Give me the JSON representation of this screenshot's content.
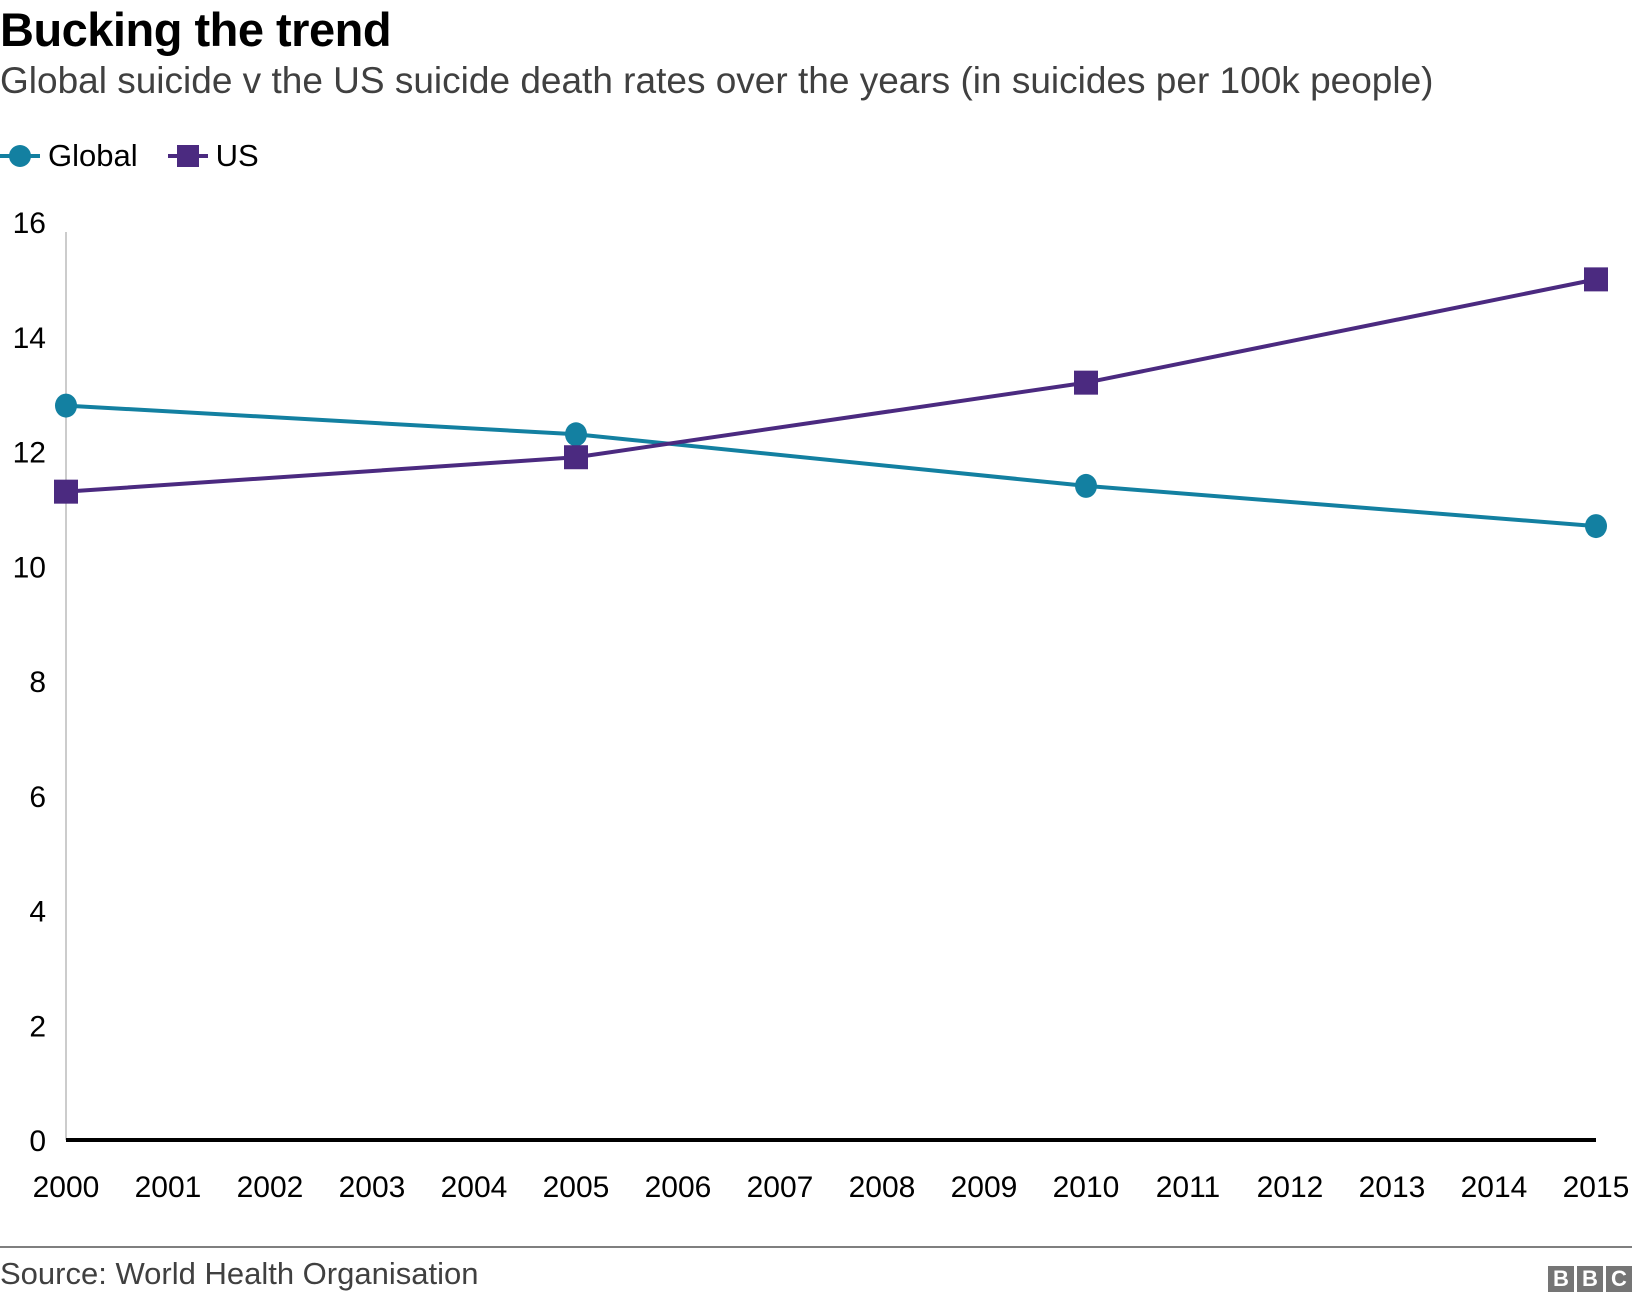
{
  "header": {
    "title": "Bucking the trend",
    "subtitle": "Global suicide v the US suicide death rates over the years (in suicides per 100k people)"
  },
  "legend": [
    {
      "name": "Global",
      "marker": "circle",
      "color": "#1380A1"
    },
    {
      "name": "US",
      "marker": "square",
      "color": "#4B2A80"
    }
  ],
  "footer": {
    "source": "Source: World Health Organisation",
    "logo_letters": [
      "B",
      "B",
      "C"
    ]
  },
  "chart_data": {
    "type": "line",
    "title": "Bucking the trend",
    "subtitle": "Global suicide v the US suicide death rates over the years (in suicides per 100k people)",
    "xlabel": "",
    "ylabel": "",
    "x_ticks": [
      "2000",
      "2001",
      "2002",
      "2003",
      "2004",
      "2005",
      "2006",
      "2007",
      "2008",
      "2009",
      "2010",
      "2011",
      "2012",
      "2013",
      "2014",
      "2015"
    ],
    "xlim": [
      2000,
      2015
    ],
    "y_ticks": [
      0,
      2,
      4,
      6,
      8,
      10,
      12,
      14,
      16
    ],
    "ylim": [
      0,
      16
    ],
    "grid": false,
    "legend_position": "top-left",
    "series": [
      {
        "name": "Global",
        "color": "#1380A1",
        "marker": "circle",
        "x": [
          2000,
          2005,
          2010,
          2015
        ],
        "values": [
          12.8,
          12.3,
          11.4,
          10.7
        ]
      },
      {
        "name": "US",
        "color": "#4B2A80",
        "marker": "square",
        "x": [
          2000,
          2005,
          2010,
          2015
        ],
        "values": [
          11.3,
          11.9,
          13.2,
          15.0
        ]
      }
    ]
  }
}
